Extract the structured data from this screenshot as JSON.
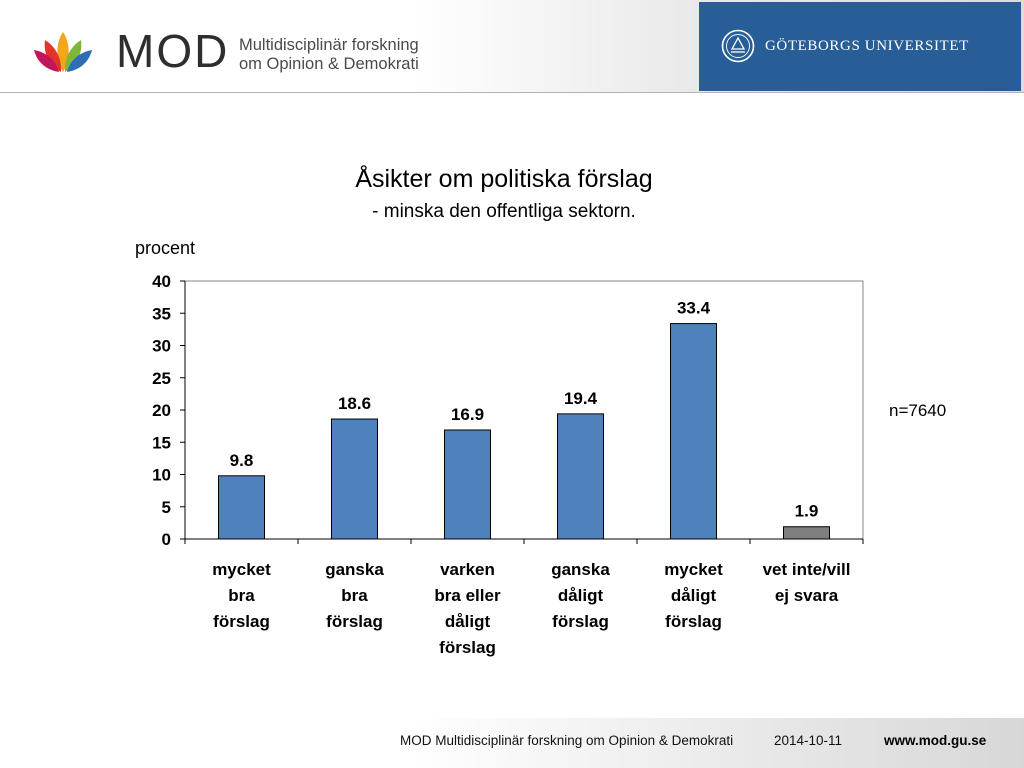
{
  "header": {
    "mod_word": "MOD",
    "mod_line1": "Multidisciplinär forskning",
    "mod_line2": "om Opinion & Demokrati",
    "university": "GÖTEBORGS UNIVERSITET"
  },
  "chart_data": {
    "type": "bar",
    "title": "Åsikter om politiska förslag",
    "subtitle": "- minska den offentliga sektorn.",
    "ylabel": "procent",
    "xlabel": "",
    "ylim": [
      0,
      40
    ],
    "yticks": [
      0,
      5,
      10,
      15,
      20,
      25,
      30,
      35,
      40
    ],
    "grid": false,
    "categories": [
      [
        "mycket",
        "bra",
        "förslag"
      ],
      [
        "ganska",
        "bra",
        "förslag"
      ],
      [
        "varken",
        "bra eller",
        "dåligt",
        "förslag"
      ],
      [
        "ganska",
        "dåligt",
        "förslag"
      ],
      [
        "mycket",
        "dåligt",
        "förslag"
      ],
      [
        "vet inte/vill",
        "ej svara"
      ]
    ],
    "values": [
      9.8,
      18.6,
      16.9,
      19.4,
      33.4,
      1.9
    ],
    "value_labels": [
      "9.8",
      "18.6",
      "16.9",
      "19.4",
      "33.4",
      "1.9"
    ],
    "bar_colors": [
      "#4f81bd",
      "#4f81bd",
      "#4f81bd",
      "#4f81bd",
      "#4f81bd",
      "#7f7f7f"
    ],
    "annotation": "n=7640"
  },
  "footer": {
    "text": "MOD Multidisciplinär forskning om Opinion & Demokrati",
    "date": "2014-10-11",
    "url": "www.mod.gu.se"
  }
}
